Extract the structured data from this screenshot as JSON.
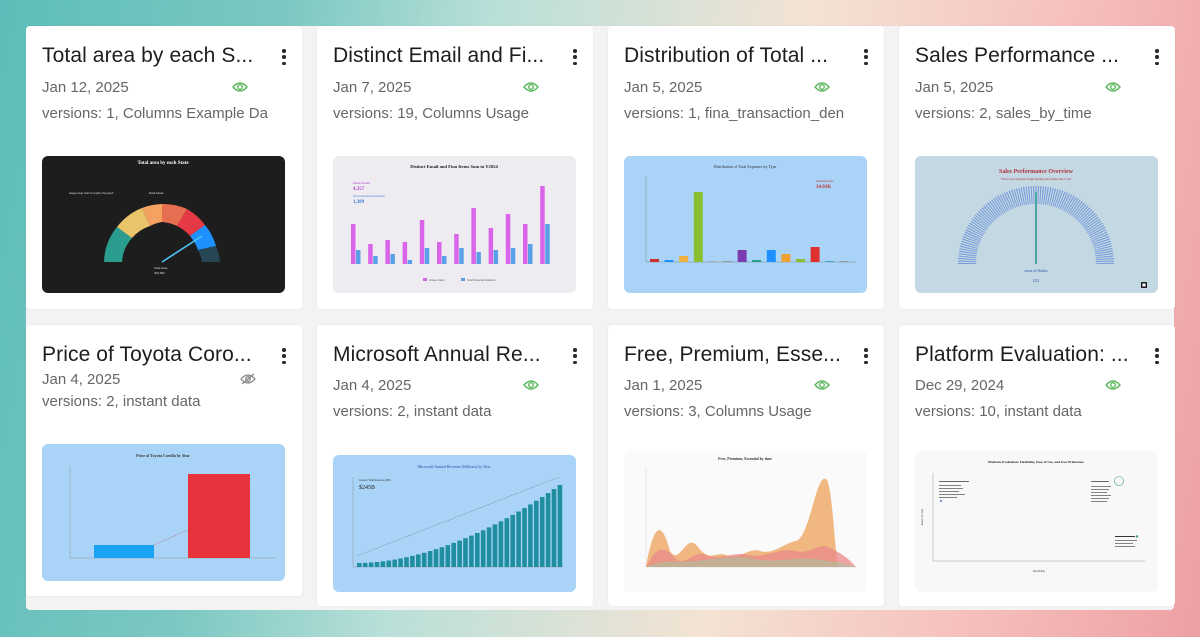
{
  "colors": {
    "eye_visible": "#5cb85c",
    "eye_hidden": "#888888",
    "panel_bg": "#f3f3f4",
    "card_bg": "#ffffff"
  },
  "cards": [
    {
      "title": "Total area by each S...",
      "date": "Jan 12, 2025",
      "meta": "versions: 1, Columns Example Da",
      "visibility_icon": "eye-icon",
      "thumb": {
        "title": "Total area by each State",
        "note": "Gauge-style chart to explore the graph",
        "legend": "Data Mode",
        "readout_label": "Total Area",
        "readout_value": "400,952"
      }
    },
    {
      "title": "Distinct Email and Fi...",
      "date": "Jan 7, 2025",
      "meta": "versions: 19, Columns Usage",
      "visibility_icon": "eye-icon",
      "thumb": {
        "title": "Distinct Email and Fina Items Sum in Y2024",
        "stat1_label": "Distinct Emails",
        "stat1_value": "4,357",
        "stat2_label": "Sum Financial Transactions",
        "stat2_value": "1,389",
        "legend1": "Unique Users",
        "legend2": "Total Financial Indicators"
      }
    },
    {
      "title": "Distribution of Total ...",
      "date": "Jan 5, 2025",
      "meta": "versions: 1, fina_transaction_den",
      "visibility_icon": "eye-icon",
      "thumb": {
        "title": "Distribution of Total Expenses by Type",
        "kpi_label": "Total Expenses",
        "kpi_value": "34.03K"
      }
    },
    {
      "title": "Sales Performance ...",
      "date": "Jan 5, 2025",
      "meta": "versions: 2, sales_by_time",
      "visibility_icon": "eye-icon",
      "thumb": {
        "title": "Sales Performance Overview",
        "subtitle": "This is your optimized Single Dividing lines shows that Y mini",
        "label": "sum of Sales",
        "value": "251"
      }
    },
    {
      "title": "Price of Toyota Coro...",
      "date": "Jan 4, 2025",
      "meta": "versions: 2, instant data",
      "visibility_icon": "eye-off-icon",
      "thumb": {
        "title": "Price of Toyota Corolla by Year"
      }
    },
    {
      "title": "Microsoft Annual Re...",
      "date": "Jan 4, 2025",
      "meta": "versions: 2, instant data",
      "visibility_icon": "eye-icon",
      "thumb": {
        "title": "Microsoft Annual Revenue (Billions) by Year",
        "kpi_label": "Current Total Revenue (Bln)",
        "kpi_value": "$245B"
      }
    },
    {
      "title": "Free, Premium, Esse...",
      "date": "Jan 1, 2025",
      "meta": "versions: 3, Columns Usage",
      "visibility_icon": "eye-icon",
      "thumb": {
        "title": "Free, Premium, Essential by time"
      }
    },
    {
      "title": "Platform Evaluation: ...",
      "date": "Dec 29, 2024",
      "meta": "versions: 10, instant data",
      "visibility_icon": "eye-icon",
      "thumb": {
        "title": "Platform Evaluation: Flexibility, Ease of Use, and User Preference",
        "xlabel": "Flexibility",
        "ylabel": "Ease of Use"
      }
    }
  ]
}
